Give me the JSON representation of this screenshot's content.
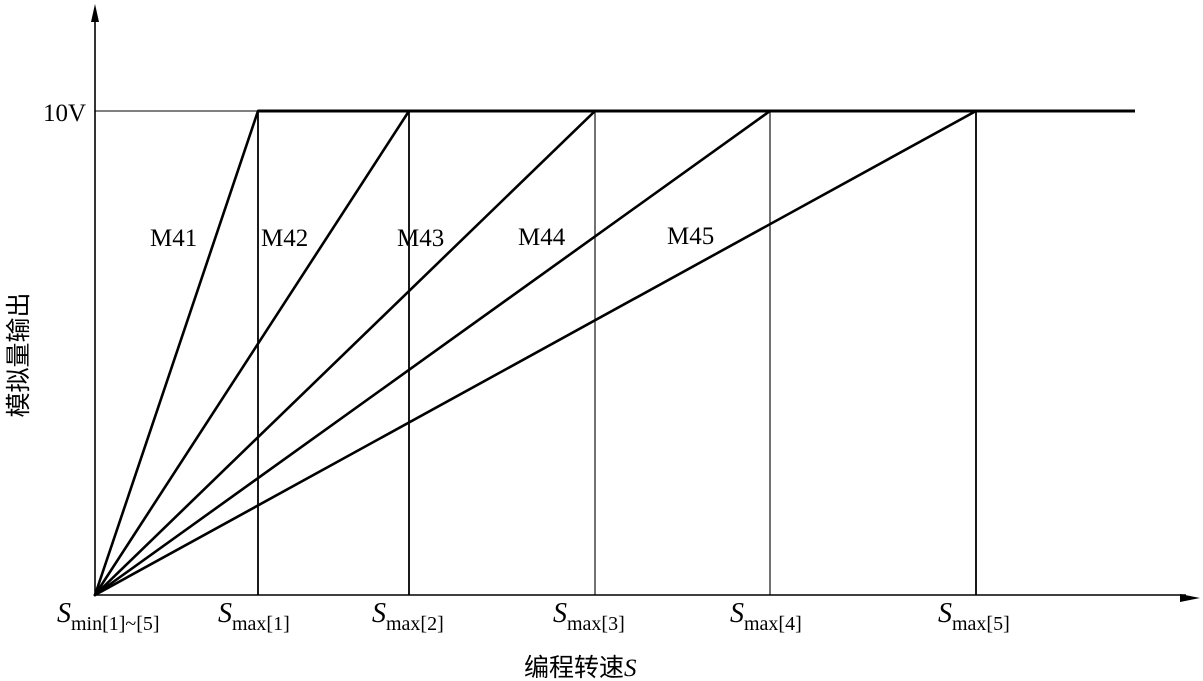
{
  "chart_data": {
    "type": "line",
    "xlabel": "编程转速S",
    "ylabel": "模拟量输出",
    "y_tick": "10V",
    "grid": false,
    "legend": "none",
    "x_ticks": [
      {
        "italic": "S",
        "sub": "min[1]~[5]"
      },
      {
        "italic": "S",
        "sub": "max[1]"
      },
      {
        "italic": "S",
        "sub": "max[2]"
      },
      {
        "italic": "S",
        "sub": "max[3]"
      },
      {
        "italic": "S",
        "sub": "max[4]"
      },
      {
        "italic": "S",
        "sub": "max[5]"
      }
    ],
    "series": [
      {
        "name": "M41",
        "points": [
          [
            "Smin",
            0
          ],
          [
            "Smax[1]",
            10
          ]
        ]
      },
      {
        "name": "M42",
        "points": [
          [
            "Smin",
            0
          ],
          [
            "Smax[2]",
            10
          ]
        ]
      },
      {
        "name": "M43",
        "points": [
          [
            "Smin",
            0
          ],
          [
            "Smax[3]",
            10
          ]
        ]
      },
      {
        "name": "M44",
        "points": [
          [
            "Smin",
            0
          ],
          [
            "Smax[4]",
            10
          ]
        ]
      },
      {
        "name": "M45",
        "points": [
          [
            "Smin",
            0
          ],
          [
            "Smax[5]",
            10
          ]
        ]
      }
    ],
    "saturation": {
      "value": 10,
      "unit": "V"
    }
  },
  "colors": {
    "ink": "#000000",
    "background": "#ffffff"
  }
}
